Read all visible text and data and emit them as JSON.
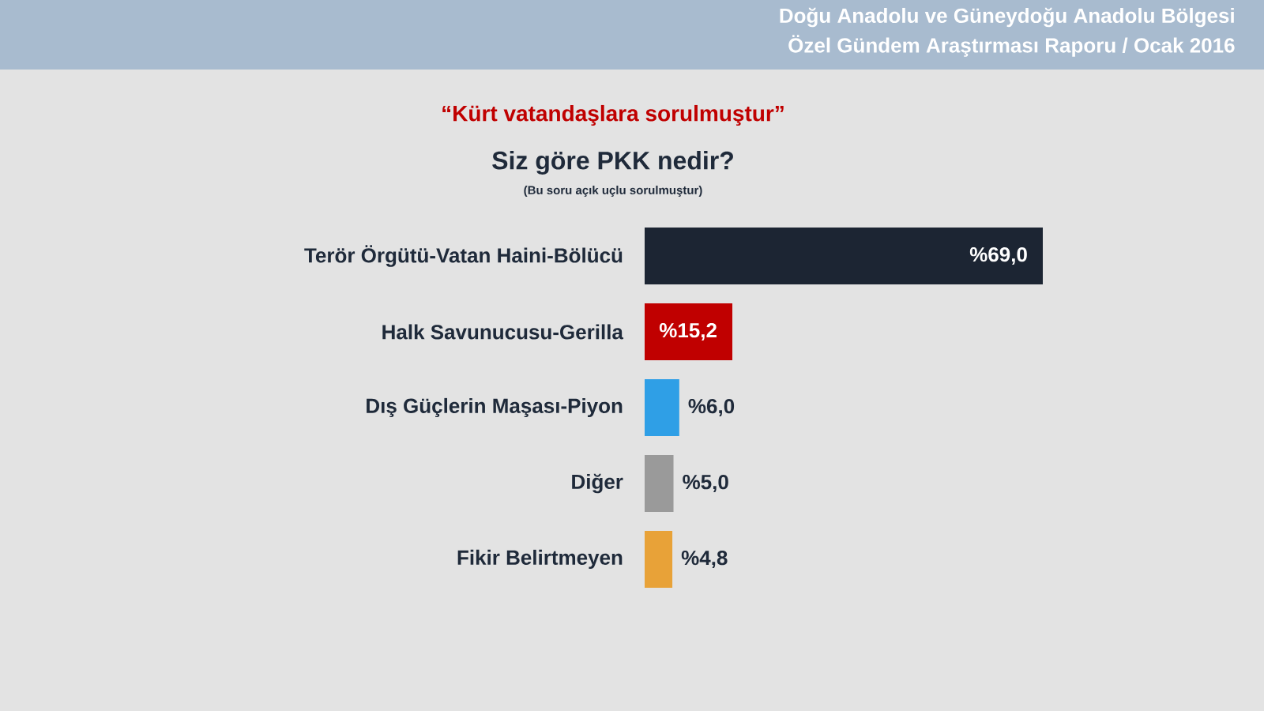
{
  "chart_data": {
    "type": "bar",
    "orientation": "horizontal",
    "title": "Siz göre PKK nedir?",
    "subtitle": "(Bu soru açık uçlu sorulmuştur)",
    "annotations": [
      "Doğu Anadolu ve Güneydoğu Anadolu Bölgesi",
      "Özel Gündem Araştırması Raporu / Ocak 2016",
      "“Kürt vatandaşlara sorulmuştur”"
    ],
    "categories": [
      "Terör Örgütü-Vatan Haini-Bölücü",
      "Halk Savunucusu-Gerilla",
      "Dış Güçlerin Maşası-Piyon",
      "Diğer",
      "Fikir Belirtmeyen"
    ],
    "values": [
      69.0,
      15.2,
      6.0,
      5.0,
      4.8
    ],
    "colors": [
      "#1c2533",
      "#c00000",
      "#2f9fe6",
      "#9a9a9a",
      "#e8a238"
    ],
    "value_labels": [
      "%69,0",
      "%15,2",
      "%6,0",
      "%5,0",
      "%4,8"
    ]
  }
}
